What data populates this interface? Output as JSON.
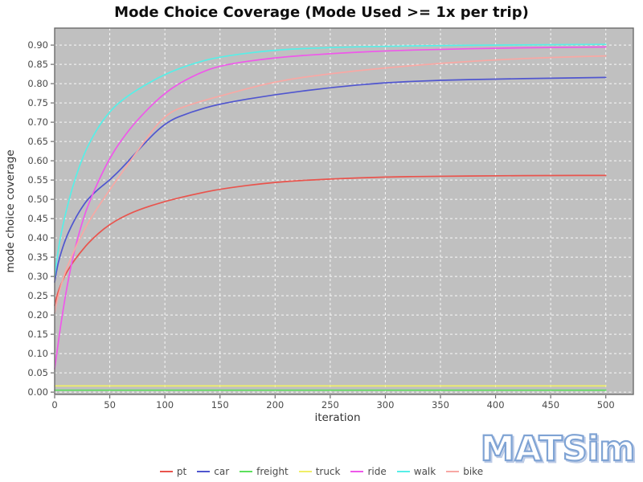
{
  "watermark": "MATSim",
  "chart_data": {
    "type": "line",
    "title": "Mode Choice Coverage (Mode Used >= 1x per trip)",
    "xlabel": "iteration",
    "ylabel": "mode choice coverage",
    "xlim": [
      0,
      525
    ],
    "ylim": [
      -0.006,
      0.944
    ],
    "x_ticks": [
      0,
      50,
      100,
      150,
      200,
      250,
      300,
      350,
      400,
      450,
      500
    ],
    "y_ticks": [
      "0.00",
      "0.05",
      "0.10",
      "0.15",
      "0.20",
      "0.25",
      "0.30",
      "0.35",
      "0.40",
      "0.45",
      "0.50",
      "0.55",
      "0.60",
      "0.65",
      "0.70",
      "0.75",
      "0.80",
      "0.85",
      "0.90"
    ],
    "grid": "dashed-white",
    "plot_bg": "#c0c0c0",
    "legend_position": "bottom",
    "x": [
      0,
      2,
      5,
      10,
      15,
      20,
      25,
      30,
      40,
      50,
      60,
      75,
      100,
      125,
      150,
      200,
      250,
      300,
      350,
      400,
      450,
      500
    ],
    "series": [
      {
        "name": "pt",
        "color": "#e9544d",
        "values": [
          0.225,
          0.25,
          0.275,
          0.307,
          0.33,
          0.35,
          0.368,
          0.385,
          0.413,
          0.435,
          0.452,
          0.472,
          0.495,
          0.512,
          0.527,
          0.545,
          0.553,
          0.558,
          0.56,
          0.561,
          0.562,
          0.562
        ]
      },
      {
        "name": "car",
        "color": "#5056cf",
        "values": [
          0.285,
          0.32,
          0.355,
          0.398,
          0.43,
          0.457,
          0.48,
          0.5,
          0.528,
          0.55,
          0.578,
          0.625,
          0.7,
          0.728,
          0.748,
          0.772,
          0.79,
          0.803,
          0.809,
          0.812,
          0.814,
          0.816
        ]
      },
      {
        "name": "freight",
        "color": "#5ce05c",
        "values": [
          0.005,
          0.005,
          0.005,
          0.005,
          0.005,
          0.005,
          0.005,
          0.005,
          0.005,
          0.005,
          0.005,
          0.005,
          0.005,
          0.005,
          0.005,
          0.005,
          0.005,
          0.005,
          0.005,
          0.005,
          0.005,
          0.005
        ]
      },
      {
        "name": "truck",
        "color": "#f0ef67",
        "values": [
          0.016,
          0.016,
          0.016,
          0.016,
          0.016,
          0.016,
          0.016,
          0.016,
          0.016,
          0.016,
          0.016,
          0.016,
          0.016,
          0.016,
          0.016,
          0.016,
          0.016,
          0.016,
          0.016,
          0.016,
          0.016,
          0.016
        ]
      },
      {
        "name": "ride",
        "color": "#ef58ea",
        "values": [
          0.06,
          0.1,
          0.165,
          0.255,
          0.33,
          0.39,
          0.44,
          0.483,
          0.55,
          0.607,
          0.652,
          0.707,
          0.778,
          0.82,
          0.848,
          0.868,
          0.878,
          0.885,
          0.889,
          0.892,
          0.894,
          0.895
        ]
      },
      {
        "name": "walk",
        "color": "#57efe7",
        "values": [
          0.3,
          0.345,
          0.4,
          0.465,
          0.52,
          0.565,
          0.605,
          0.638,
          0.69,
          0.728,
          0.755,
          0.785,
          0.825,
          0.852,
          0.87,
          0.888,
          0.894,
          0.897,
          0.899,
          0.9,
          0.901,
          0.902
        ]
      },
      {
        "name": "bike",
        "color": "#f8a8a4",
        "values": [
          0.205,
          0.235,
          0.27,
          0.315,
          0.35,
          0.382,
          0.41,
          0.438,
          0.483,
          0.525,
          0.565,
          0.625,
          0.722,
          0.748,
          0.768,
          0.806,
          0.826,
          0.841,
          0.853,
          0.862,
          0.868,
          0.872
        ]
      }
    ]
  }
}
